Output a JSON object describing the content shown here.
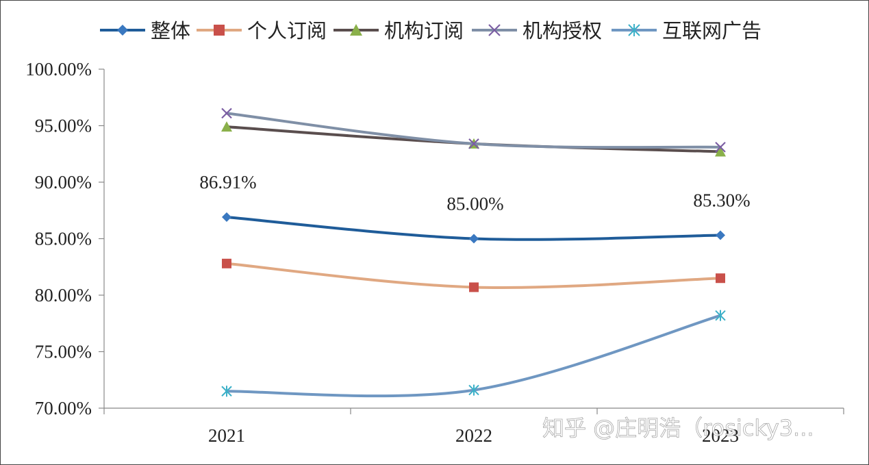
{
  "watermark": "知乎 @庄明浩（rosicky3...",
  "chart_data": {
    "type": "line",
    "categories": [
      "2021",
      "2022",
      "2023"
    ],
    "ylim": [
      0.7,
      1.0
    ],
    "yticks": [
      "100.00%",
      "95.00%",
      "90.00%",
      "85.00%",
      "80.00%",
      "75.00%",
      "70.00%"
    ],
    "ytick_values": [
      1.0,
      0.95,
      0.9,
      0.85,
      0.8,
      0.75,
      0.7
    ],
    "legend_position": "top",
    "grid": false,
    "series": [
      {
        "name": "整体",
        "values": [
          0.8691,
          0.85,
          0.853
        ],
        "line_color": "#1f5c99",
        "marker": "diamond",
        "marker_color": "#3a78c0",
        "labels": [
          "86.91%",
          "85.00%",
          "85.30%"
        ]
      },
      {
        "name": "个人订阅",
        "values": [
          0.828,
          0.807,
          0.815
        ],
        "line_color": "#e0a882",
        "marker": "square",
        "marker_color": "#c9504a"
      },
      {
        "name": "机构订阅",
        "values": [
          0.949,
          0.934,
          0.927
        ],
        "line_color": "#5a4e4e",
        "marker": "triangle",
        "marker_color": "#8ab04a"
      },
      {
        "name": "机构授权",
        "values": [
          0.961,
          0.934,
          0.931
        ],
        "line_color": "#7f8fa6",
        "marker": "x",
        "marker_color": "#7b5ea3"
      },
      {
        "name": "互联网广告",
        "values": [
          0.715,
          0.716,
          0.782
        ],
        "line_color": "#6f97c2",
        "marker": "asterisk",
        "marker_color": "#3cb0c8"
      }
    ]
  }
}
